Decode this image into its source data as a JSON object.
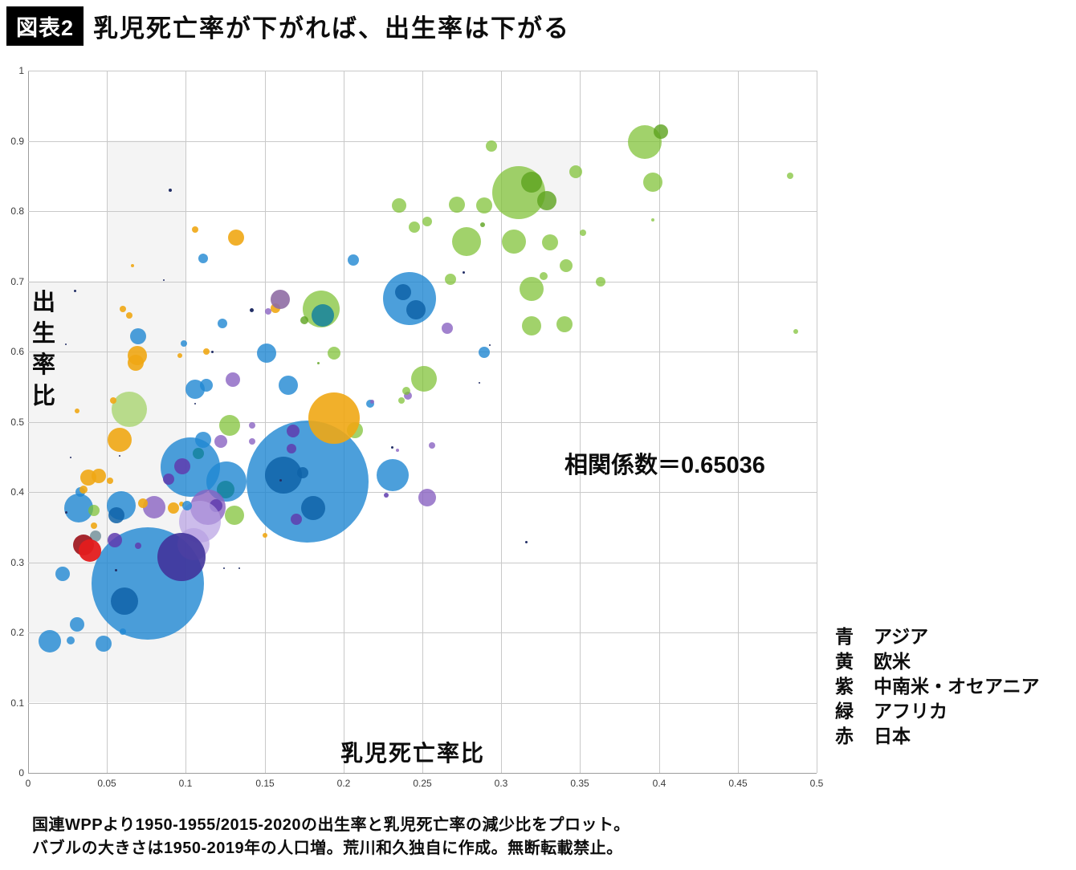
{
  "header": {
    "badge": "図表2",
    "title": "乳児死亡率が下がれば、出生率は下がる"
  },
  "chart_data": {
    "type": "scatter",
    "subtype": "bubble",
    "title": "乳児死亡率が下がれば、出生率は下がる",
    "xlabel": "乳児死亡率比",
    "ylabel": "出生率比",
    "annotation": "相関係数＝0.65036",
    "correlation": 0.65036,
    "xlim": [
      0,
      0.5
    ],
    "ylim": [
      0,
      1
    ],
    "grid": true,
    "x_ticks": [
      "0",
      "0.05",
      "0.1",
      "0.15",
      "0.2",
      "0.25",
      "0.3",
      "0.35",
      "0.4",
      "0.45",
      "0.5"
    ],
    "y_ticks": [
      "1",
      "0.9",
      "0.8",
      "0.7",
      "0.6",
      "0.5",
      "0.4",
      "0.3",
      "0.2",
      "0.1",
      "0"
    ],
    "series": [
      {
        "name": "アジア",
        "color_label": "青",
        "color": "#1f87d2"
      },
      {
        "name": "欧米",
        "color_label": "黄",
        "color": "#f0a714"
      },
      {
        "name": "中南米・オセアニア",
        "color_label": "紫",
        "color": "#8a63c2"
      },
      {
        "name": "アフリカ",
        "color_label": "緑",
        "color": "#7dc032"
      },
      {
        "name": "日本",
        "color_label": "赤",
        "color": "#e31c1e"
      }
    ],
    "palette": {
      "blue": "#1f87d2",
      "blue2": "#0f63a8",
      "teal": "#15829e",
      "yellow": "#f0a714",
      "green": "#7dc032",
      "green2": "#5ca31e",
      "greenlight": "#a9d470",
      "purple": "#8a63c2",
      "purple2": "#5f3cae",
      "mauve": "#8f6da4",
      "indigo": "#41349b",
      "lavender": "#b79fe2",
      "red": "#e31c1e",
      "red2": "#9c1118",
      "navy": "#232f66",
      "gray": "#7d98a1"
    },
    "opacity": {
      "blue": 0.8,
      "blue2": 0.85,
      "teal": 0.85,
      "yellow": 0.9,
      "green": 0.72,
      "green2": 0.8,
      "greenlight": 0.8,
      "purple": 0.8,
      "purple2": 0.85,
      "mauve": 0.9,
      "indigo": 0.9,
      "lavender": 0.7,
      "red": 0.95,
      "red2": 0.9,
      "navy": 1,
      "gray": 0.9
    },
    "bubbles": [
      {
        "x": 0.076,
        "y": 0.27,
        "r": 70,
        "c": "blue"
      },
      {
        "x": 0.061,
        "y": 0.245,
        "r": 17,
        "c": "blue2"
      },
      {
        "x": 0.177,
        "y": 0.415,
        "r": 76,
        "c": "blue"
      },
      {
        "x": 0.162,
        "y": 0.424,
        "r": 23,
        "c": "blue2"
      },
      {
        "x": 0.174,
        "y": 0.427,
        "r": 7,
        "c": "blue2"
      },
      {
        "x": 0.181,
        "y": 0.377,
        "r": 15,
        "c": "blue2"
      },
      {
        "x": 0.168,
        "y": 0.487,
        "r": 8,
        "c": "purple2"
      },
      {
        "x": 0.167,
        "y": 0.462,
        "r": 6,
        "c": "purple2"
      },
      {
        "x": 0.17,
        "y": 0.361,
        "r": 7,
        "c": "purple2"
      },
      {
        "x": 0.16,
        "y": 0.417,
        "r": 1.5,
        "c": "navy"
      },
      {
        "x": 0.207,
        "y": 0.488,
        "r": 10,
        "c": "green"
      },
      {
        "x": 0.194,
        "y": 0.505,
        "r": 32,
        "c": "yellow"
      },
      {
        "x": 0.231,
        "y": 0.424,
        "r": 20,
        "c": "blue"
      },
      {
        "x": 0.227,
        "y": 0.395,
        "r": 3,
        "c": "purple2"
      },
      {
        "x": 0.253,
        "y": 0.392,
        "r": 11,
        "c": "purple"
      },
      {
        "x": 0.103,
        "y": 0.435,
        "r": 37,
        "c": "blue"
      },
      {
        "x": 0.098,
        "y": 0.437,
        "r": 10,
        "c": "purple2"
      },
      {
        "x": 0.089,
        "y": 0.418,
        "r": 7,
        "c": "purple2"
      },
      {
        "x": 0.111,
        "y": 0.474,
        "r": 10,
        "c": "blue"
      },
      {
        "x": 0.108,
        "y": 0.455,
        "r": 7,
        "c": "teal"
      },
      {
        "x": 0.126,
        "y": 0.415,
        "r": 25,
        "c": "blue"
      },
      {
        "x": 0.125,
        "y": 0.403,
        "r": 11,
        "c": "teal"
      },
      {
        "x": 0.114,
        "y": 0.378,
        "r": 22,
        "c": "purple"
      },
      {
        "x": 0.119,
        "y": 0.381,
        "r": 8,
        "c": "purple2"
      },
      {
        "x": 0.109,
        "y": 0.358,
        "r": 26,
        "c": "lavender"
      },
      {
        "x": 0.105,
        "y": 0.326,
        "r": 20,
        "c": "lavender"
      },
      {
        "x": 0.097,
        "y": 0.307,
        "r": 30,
        "c": "indigo"
      },
      {
        "x": 0.131,
        "y": 0.367,
        "r": 12,
        "c": "green"
      },
      {
        "x": 0.08,
        "y": 0.378,
        "r": 14,
        "c": "purple"
      },
      {
        "x": 0.092,
        "y": 0.377,
        "r": 7,
        "c": "yellow"
      },
      {
        "x": 0.097,
        "y": 0.383,
        "r": 3,
        "c": "yellow"
      },
      {
        "x": 0.073,
        "y": 0.384,
        "r": 6,
        "c": "yellow"
      },
      {
        "x": 0.101,
        "y": 0.381,
        "r": 6,
        "c": "blue"
      },
      {
        "x": 0.059,
        "y": 0.381,
        "r": 18,
        "c": "blue"
      },
      {
        "x": 0.056,
        "y": 0.367,
        "r": 10,
        "c": "blue2"
      },
      {
        "x": 0.032,
        "y": 0.377,
        "r": 18,
        "c": "blue"
      },
      {
        "x": 0.033,
        "y": 0.4,
        "r": 6,
        "c": "blue"
      },
      {
        "x": 0.042,
        "y": 0.374,
        "r": 7,
        "c": "green"
      },
      {
        "x": 0.043,
        "y": 0.337,
        "r": 7,
        "c": "gray"
      },
      {
        "x": 0.042,
        "y": 0.352,
        "r": 4,
        "c": "yellow"
      },
      {
        "x": 0.055,
        "y": 0.331,
        "r": 9,
        "c": "purple2"
      },
      {
        "x": 0.07,
        "y": 0.323,
        "r": 4,
        "c": "purple2"
      },
      {
        "x": 0.035,
        "y": 0.325,
        "r": 13,
        "c": "red2"
      },
      {
        "x": 0.039,
        "y": 0.317,
        "r": 14,
        "c": "red"
      },
      {
        "x": 0.022,
        "y": 0.283,
        "r": 9,
        "c": "blue"
      },
      {
        "x": 0.031,
        "y": 0.211,
        "r": 9,
        "c": "blue"
      },
      {
        "x": 0.014,
        "y": 0.187,
        "r": 14,
        "c": "blue"
      },
      {
        "x": 0.027,
        "y": 0.189,
        "r": 5,
        "c": "blue"
      },
      {
        "x": 0.048,
        "y": 0.184,
        "r": 10,
        "c": "blue"
      },
      {
        "x": 0.06,
        "y": 0.201,
        "r": 4,
        "c": "blue"
      },
      {
        "x": 0.064,
        "y": 0.518,
        "r": 22,
        "c": "greenlight"
      },
      {
        "x": 0.054,
        "y": 0.53,
        "r": 4,
        "c": "yellow"
      },
      {
        "x": 0.031,
        "y": 0.515,
        "r": 3,
        "c": "yellow"
      },
      {
        "x": 0.058,
        "y": 0.474,
        "r": 15,
        "c": "yellow"
      },
      {
        "x": 0.038,
        "y": 0.421,
        "r": 10,
        "c": "yellow"
      },
      {
        "x": 0.045,
        "y": 0.423,
        "r": 9,
        "c": "yellow"
      },
      {
        "x": 0.052,
        "y": 0.416,
        "r": 4,
        "c": "yellow"
      },
      {
        "x": 0.035,
        "y": 0.403,
        "r": 5,
        "c": "yellow"
      },
      {
        "x": 0.128,
        "y": 0.495,
        "r": 13,
        "c": "green"
      },
      {
        "x": 0.122,
        "y": 0.472,
        "r": 8,
        "c": "purple"
      },
      {
        "x": 0.142,
        "y": 0.472,
        "r": 4,
        "c": "purple"
      },
      {
        "x": 0.142,
        "y": 0.495,
        "r": 4,
        "c": "purple"
      },
      {
        "x": 0.106,
        "y": 0.546,
        "r": 12,
        "c": "blue"
      },
      {
        "x": 0.113,
        "y": 0.552,
        "r": 8,
        "c": "blue"
      },
      {
        "x": 0.13,
        "y": 0.56,
        "r": 9,
        "c": "purple"
      },
      {
        "x": 0.165,
        "y": 0.552,
        "r": 12,
        "c": "blue"
      },
      {
        "x": 0.217,
        "y": 0.526,
        "r": 5,
        "c": "blue"
      },
      {
        "x": 0.218,
        "y": 0.529,
        "r": 2.5,
        "c": "purple"
      },
      {
        "x": 0.241,
        "y": 0.537,
        "r": 5,
        "c": "purple"
      },
      {
        "x": 0.237,
        "y": 0.53,
        "r": 4,
        "c": "green"
      },
      {
        "x": 0.24,
        "y": 0.544,
        "r": 5,
        "c": "green"
      },
      {
        "x": 0.251,
        "y": 0.561,
        "r": 16,
        "c": "green"
      },
      {
        "x": 0.234,
        "y": 0.459,
        "r": 2,
        "c": "purple"
      },
      {
        "x": 0.256,
        "y": 0.466,
        "r": 4,
        "c": "purple"
      },
      {
        "x": 0.231,
        "y": 0.463,
        "r": 1.5,
        "c": "navy"
      },
      {
        "x": 0.157,
        "y": 0.662,
        "r": 6,
        "c": "yellow"
      },
      {
        "x": 0.16,
        "y": 0.674,
        "r": 12,
        "c": "mauve"
      },
      {
        "x": 0.152,
        "y": 0.657,
        "r": 4,
        "c": "purple"
      },
      {
        "x": 0.142,
        "y": 0.659,
        "r": 2.5,
        "c": "navy"
      },
      {
        "x": 0.186,
        "y": 0.661,
        "r": 23,
        "c": "green"
      },
      {
        "x": 0.187,
        "y": 0.651,
        "r": 14,
        "c": "teal"
      },
      {
        "x": 0.175,
        "y": 0.645,
        "r": 5,
        "c": "green2"
      },
      {
        "x": 0.206,
        "y": 0.73,
        "r": 7,
        "c": "blue"
      },
      {
        "x": 0.242,
        "y": 0.675,
        "r": 33,
        "c": "blue"
      },
      {
        "x": 0.238,
        "y": 0.685,
        "r": 10,
        "c": "blue2"
      },
      {
        "x": 0.246,
        "y": 0.659,
        "r": 12,
        "c": "blue2"
      },
      {
        "x": 0.266,
        "y": 0.633,
        "r": 7,
        "c": "purple"
      },
      {
        "x": 0.289,
        "y": 0.599,
        "r": 7,
        "c": "blue"
      },
      {
        "x": 0.151,
        "y": 0.598,
        "r": 12,
        "c": "blue"
      },
      {
        "x": 0.194,
        "y": 0.598,
        "r": 8,
        "c": "green"
      },
      {
        "x": 0.123,
        "y": 0.64,
        "r": 6,
        "c": "blue"
      },
      {
        "x": 0.07,
        "y": 0.622,
        "r": 10,
        "c": "blue"
      },
      {
        "x": 0.099,
        "y": 0.611,
        "r": 4,
        "c": "blue"
      },
      {
        "x": 0.069,
        "y": 0.594,
        "r": 12,
        "c": "yellow"
      },
      {
        "x": 0.068,
        "y": 0.584,
        "r": 10,
        "c": "yellow"
      },
      {
        "x": 0.096,
        "y": 0.594,
        "r": 3,
        "c": "yellow"
      },
      {
        "x": 0.113,
        "y": 0.6,
        "r": 4,
        "c": "yellow"
      },
      {
        "x": 0.117,
        "y": 0.599,
        "r": 1.5,
        "c": "navy"
      },
      {
        "x": 0.111,
        "y": 0.733,
        "r": 6,
        "c": "blue"
      },
      {
        "x": 0.132,
        "y": 0.762,
        "r": 10,
        "c": "yellow"
      },
      {
        "x": 0.106,
        "y": 0.774,
        "r": 4,
        "c": "yellow"
      },
      {
        "x": 0.066,
        "y": 0.722,
        "r": 2,
        "c": "yellow"
      },
      {
        "x": 0.06,
        "y": 0.661,
        "r": 4,
        "c": "yellow"
      },
      {
        "x": 0.064,
        "y": 0.651,
        "r": 4,
        "c": "yellow"
      },
      {
        "x": 0.09,
        "y": 0.83,
        "r": 2,
        "c": "navy"
      },
      {
        "x": 0.391,
        "y": 0.898,
        "r": 21,
        "c": "green"
      },
      {
        "x": 0.401,
        "y": 0.913,
        "r": 9,
        "c": "green2"
      },
      {
        "x": 0.396,
        "y": 0.841,
        "r": 12,
        "c": "green"
      },
      {
        "x": 0.294,
        "y": 0.893,
        "r": 7,
        "c": "green"
      },
      {
        "x": 0.311,
        "y": 0.826,
        "r": 33,
        "c": "green"
      },
      {
        "x": 0.319,
        "y": 0.841,
        "r": 13,
        "c": "green2"
      },
      {
        "x": 0.329,
        "y": 0.815,
        "r": 12,
        "c": "green2"
      },
      {
        "x": 0.347,
        "y": 0.856,
        "r": 8,
        "c": "green"
      },
      {
        "x": 0.483,
        "y": 0.85,
        "r": 4,
        "c": "green"
      },
      {
        "x": 0.272,
        "y": 0.809,
        "r": 10,
        "c": "green"
      },
      {
        "x": 0.289,
        "y": 0.808,
        "r": 10,
        "c": "green"
      },
      {
        "x": 0.288,
        "y": 0.781,
        "r": 3,
        "c": "green2"
      },
      {
        "x": 0.278,
        "y": 0.757,
        "r": 18,
        "c": "green"
      },
      {
        "x": 0.308,
        "y": 0.757,
        "r": 15,
        "c": "green"
      },
      {
        "x": 0.331,
        "y": 0.755,
        "r": 10,
        "c": "green"
      },
      {
        "x": 0.352,
        "y": 0.769,
        "r": 4,
        "c": "green"
      },
      {
        "x": 0.396,
        "y": 0.787,
        "r": 2,
        "c": "green"
      },
      {
        "x": 0.341,
        "y": 0.722,
        "r": 8,
        "c": "green"
      },
      {
        "x": 0.327,
        "y": 0.707,
        "r": 5,
        "c": "green"
      },
      {
        "x": 0.363,
        "y": 0.699,
        "r": 6,
        "c": "green"
      },
      {
        "x": 0.319,
        "y": 0.689,
        "r": 15,
        "c": "green"
      },
      {
        "x": 0.319,
        "y": 0.637,
        "r": 12,
        "c": "green"
      },
      {
        "x": 0.34,
        "y": 0.639,
        "r": 10,
        "c": "green"
      },
      {
        "x": 0.487,
        "y": 0.629,
        "r": 3,
        "c": "green"
      },
      {
        "x": 0.268,
        "y": 0.703,
        "r": 7,
        "c": "green"
      },
      {
        "x": 0.235,
        "y": 0.808,
        "r": 9,
        "c": "green"
      },
      {
        "x": 0.245,
        "y": 0.777,
        "r": 7,
        "c": "green"
      },
      {
        "x": 0.253,
        "y": 0.785,
        "r": 6,
        "c": "green"
      },
      {
        "x": 0.276,
        "y": 0.713,
        "r": 1.5,
        "c": "navy"
      },
      {
        "x": 0.293,
        "y": 0.609,
        "r": 1,
        "c": "navy"
      },
      {
        "x": 0.03,
        "y": 0.686,
        "r": 1.5,
        "c": "navy"
      },
      {
        "x": 0.086,
        "y": 0.702,
        "r": 1,
        "c": "navy"
      },
      {
        "x": 0.024,
        "y": 0.61,
        "r": 1,
        "c": "navy"
      },
      {
        "x": 0.024,
        "y": 0.371,
        "r": 1.5,
        "c": "navy"
      },
      {
        "x": 0.286,
        "y": 0.555,
        "r": 1,
        "c": "navy"
      },
      {
        "x": 0.316,
        "y": 0.329,
        "r": 1.5,
        "c": "navy"
      },
      {
        "x": 0.056,
        "y": 0.289,
        "r": 1.5,
        "c": "navy"
      },
      {
        "x": 0.124,
        "y": 0.291,
        "r": 1,
        "c": "navy"
      },
      {
        "x": 0.134,
        "y": 0.291,
        "r": 1,
        "c": "navy"
      },
      {
        "x": 0.058,
        "y": 0.451,
        "r": 1,
        "c": "navy"
      },
      {
        "x": 0.027,
        "y": 0.449,
        "r": 1,
        "c": "navy"
      },
      {
        "x": 0.106,
        "y": 0.526,
        "r": 1,
        "c": "navy"
      },
      {
        "x": 0.15,
        "y": 0.338,
        "r": 3,
        "c": "yellow"
      },
      {
        "x": 0.184,
        "y": 0.583,
        "r": 1.5,
        "c": "green2"
      }
    ]
  },
  "legend": {
    "items": [
      {
        "color_label": "青",
        "region": "アジア"
      },
      {
        "color_label": "黄",
        "region": "欧米"
      },
      {
        "color_label": "紫",
        "region": "中南米・オセアニア"
      },
      {
        "color_label": "緑",
        "region": "アフリカ"
      },
      {
        "color_label": "赤",
        "region": "日本"
      }
    ]
  },
  "footer": {
    "line1": "国連WPPより1950-1955/2015-2020の出生率と乳児死亡率の減少比をプロット。",
    "line2": "バブルの大きさは1950-2019年の人口増。荒川和久独自に作成。無断転載禁止。"
  }
}
